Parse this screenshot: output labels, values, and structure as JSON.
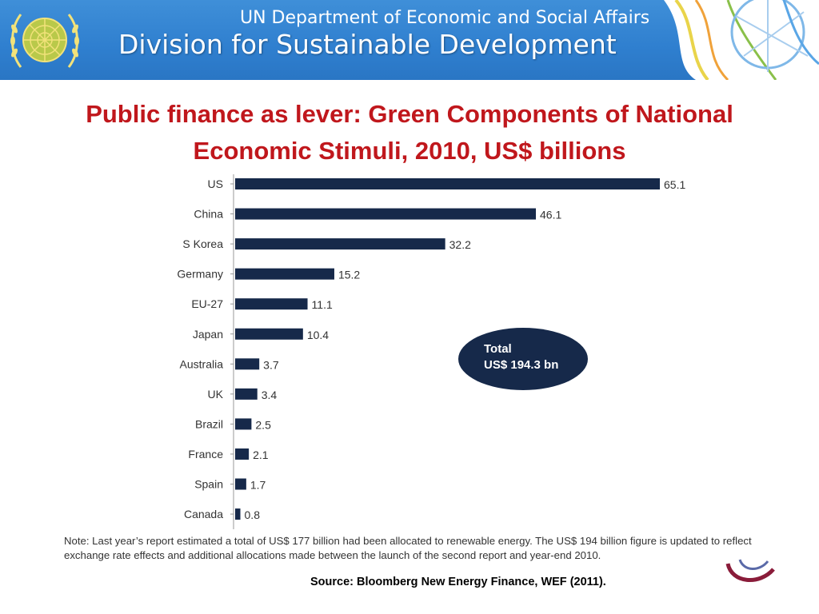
{
  "header": {
    "line1": "UN Department of Economic and Social Affairs",
    "line2": "Division for Sustainable Development"
  },
  "title": "Public finance as lever: Green Components of National Economic Stimuli, 2010, US$ billions",
  "total_bubble": {
    "line1": "Total",
    "line2": "US$ 194.3 bn"
  },
  "note": "Note: Last year’s report estimated a total of US$ 177 billion had been allocated to renewable energy. The US$ 194 billion figure is updated to reflect exchange rate effects and additional allocations made between the launch of the second report and year-end 2010.",
  "source": "Source: Bloomberg New Energy Finance, WEF (2011).",
  "colors": {
    "bar": "#16294a",
    "title": "#c0171c",
    "header": "#2f7fcf"
  },
  "chart_data": {
    "type": "bar",
    "orientation": "horizontal",
    "categories": [
      "US",
      "China",
      "S Korea",
      "Germany",
      "EU-27",
      "Japan",
      "Australia",
      "UK",
      "Brazil",
      "France",
      "Spain",
      "Canada"
    ],
    "values": [
      65.1,
      46.1,
      32.2,
      15.2,
      11.1,
      10.4,
      3.7,
      3.4,
      2.5,
      2.1,
      1.7,
      0.8
    ],
    "value_labels": [
      "65.1",
      "46.1",
      "32.2",
      "15.2",
      "11.1",
      "10.4",
      "3.7",
      "3.4",
      "2.5",
      "2.1",
      "1.7",
      "0.8"
    ],
    "xlim": [
      0,
      65.1
    ],
    "grid": false,
    "legend": "none"
  }
}
